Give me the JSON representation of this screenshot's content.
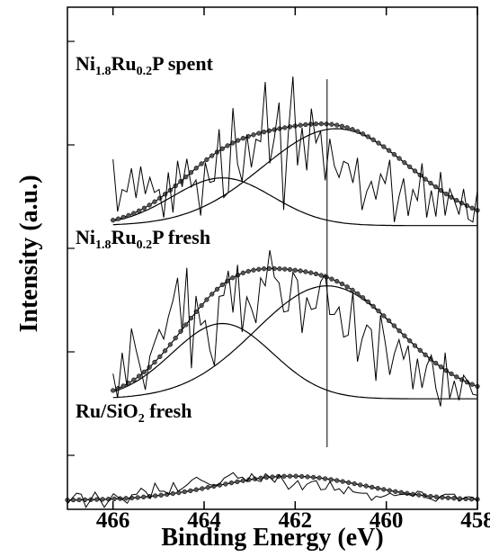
{
  "chart_data": {
    "type": "line",
    "title": "",
    "xlabel": "Binding Energy (eV)",
    "ylabel": "Intensity (a.u.)",
    "x_reversed": true,
    "xlim": [
      467,
      458
    ],
    "ylim": [
      0,
      1
    ],
    "xticks": [
      466,
      464,
      462,
      460,
      458
    ],
    "xtick_labels": [
      "466",
      "464",
      "462",
      "460",
      "458"
    ],
    "reference_line_x": 461.3,
    "spectra": [
      {
        "label_parts": [
          {
            "text": "Ni"
          },
          {
            "text": "1.8",
            "sub": true
          },
          {
            "text": "Ru"
          },
          {
            "text": "0.2",
            "sub": true
          },
          {
            "text": "P spent"
          }
        ],
        "x_range": [
          466,
          458
        ],
        "baseline": 0.565,
        "components": [
          {
            "center": 463.6,
            "fwhm": 2.6,
            "height": 0.095
          },
          {
            "center": 461.1,
            "fwhm": 3.8,
            "height": 0.193
          }
        ],
        "raw": [
          0.697,
          0.593,
          0.637,
          0.632,
          0.679,
          0.62,
          0.683,
          0.628,
          0.661,
          0.631,
          0.637,
          0.581,
          0.671,
          0.591,
          0.694,
          0.642,
          0.698,
          0.642,
          0.656,
          0.585,
          0.691,
          0.651,
          0.654,
          0.757,
          0.621,
          0.631,
          0.799,
          0.688,
          0.653,
          0.746,
          0.681,
          0.737,
          0.732,
          0.851,
          0.689,
          0.74,
          0.81,
          0.596,
          0.747,
          0.862,
          0.685,
          0.76,
          0.675,
          0.798,
          0.73,
          0.753,
          0.655,
          0.738,
          0.684,
          0.661,
          0.693,
          0.688,
          0.65,
          0.7,
          0.596,
          0.633,
          0.653,
          0.617,
          0.668,
          0.649,
          0.696,
          0.572,
          0.623,
          0.659,
          0.584,
          0.637,
          0.615,
          0.689,
          0.581,
          0.635,
          0.583,
          0.672,
          0.585,
          0.638,
          0.615,
          0.587,
          0.638,
          0.578,
          0.572,
          0.634
        ]
      },
      {
        "label_parts": [
          {
            "text": "Ni"
          },
          {
            "text": "1.8",
            "sub": true
          },
          {
            "text": "Ru"
          },
          {
            "text": "0.2",
            "sub": true
          },
          {
            "text": "P fresh"
          }
        ],
        "x_range": [
          466,
          458
        ],
        "baseline": 0.22,
        "components": [
          {
            "center": 463.6,
            "fwhm": 2.6,
            "height": 0.15
          },
          {
            "center": 461.3,
            "fwhm": 3.7,
            "height": 0.225
          }
        ],
        "raw": [
          0.27,
          0.222,
          0.312,
          0.245,
          0.36,
          0.318,
          0.279,
          0.238,
          0.305,
          0.332,
          0.358,
          0.339,
          0.383,
          0.416,
          0.461,
          0.354,
          0.481,
          0.281,
          0.425,
          0.367,
          0.376,
          0.317,
          0.286,
          0.424,
          0.426,
          0.475,
          0.392,
          0.487,
          0.353,
          0.423,
          0.4,
          0.371,
          0.461,
          0.445,
          0.516,
          0.462,
          0.451,
          0.393,
          0.395,
          0.472,
          0.456,
          0.351,
          0.422,
          0.398,
          0.401,
          0.453,
          0.468,
          0.388,
          0.388,
          0.403,
          0.343,
          0.347,
          0.432,
          0.294,
          0.339,
          0.367,
          0.358,
          0.256,
          0.387,
          0.333,
          0.268,
          0.31,
          0.338,
          0.299,
          0.326,
          0.239,
          0.3,
          0.242,
          0.286,
          0.307,
          0.241,
          0.205,
          0.312,
          0.221,
          0.256,
          0.217,
          0.267,
          0.254,
          0.229,
          0.227
        ]
      },
      {
        "label_parts": [
          {
            "text": "Ru/SiO"
          },
          {
            "text": "2",
            "sub": true
          },
          {
            "text": " fresh"
          }
        ],
        "x_range": [
          467,
          458
        ],
        "baseline": 0.018,
        "components": [
          {
            "center": 462.1,
            "fwhm": 3.8,
            "height": 0.048
          }
        ],
        "raw": [
          0.011,
          0.022,
          0.032,
          0.03,
          0.004,
          0.018,
          0.034,
          0.02,
          0.004,
          0.017,
          0.031,
          0.024,
          0.019,
          0.012,
          0.029,
          0.03,
          0.042,
          0.035,
          0.022,
          0.052,
          0.036,
          0.036,
          0.03,
          0.053,
          0.036,
          0.042,
          0.049,
          0.058,
          0.064,
          0.058,
          0.054,
          0.049,
          0.048,
          0.05,
          0.062,
          0.067,
          0.073,
          0.062,
          0.064,
          0.055,
          0.071,
          0.058,
          0.055,
          0.071,
          0.063,
          0.054,
          0.069,
          0.055,
          0.04,
          0.048,
          0.057,
          0.039,
          0.05,
          0.055,
          0.057,
          0.039,
          0.04,
          0.055,
          0.038,
          0.041,
          0.031,
          0.045,
          0.035,
          0.033,
          0.032,
          0.032,
          0.018,
          0.026,
          0.024,
          0.027,
          0.032,
          0.027,
          0.029,
          0.03,
          0.03,
          0.026,
          0.036,
          0.034,
          0.023,
          0.02,
          0.016,
          0.026,
          0.03,
          0.03,
          0.03,
          0.016,
          0.022,
          0.025,
          0.024,
          0.016
        ]
      }
    ]
  }
}
